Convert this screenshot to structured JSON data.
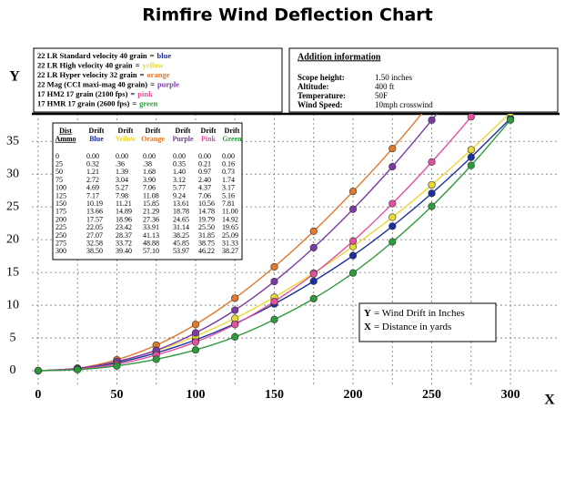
{
  "chart_data": {
    "type": "line",
    "title": "Rimfire Wind Deflection Chart",
    "y_axis_label": "Y",
    "x_axis_label": "X",
    "x": [
      0,
      25,
      50,
      75,
      100,
      125,
      150,
      175,
      200,
      225,
      250,
      275,
      300
    ],
    "xlim": [
      -4,
      330
    ],
    "xticks": [
      0,
      50,
      100,
      150,
      200,
      250,
      300
    ],
    "ylim": [
      -2.5,
      39.2
    ],
    "yticks": [
      0,
      5,
      10,
      15,
      20,
      25,
      30,
      35
    ],
    "grid": true,
    "legend_separator": "=",
    "series": [
      {
        "name": "22 LR Standard velocity 40 grain",
        "color_name": "blue",
        "table_label": "Blue",
        "color": "#1c2f9c",
        "values": [
          0,
          0.32,
          1.21,
          2.72,
          4.69,
          7.17,
          10.19,
          13.66,
          17.57,
          22.05,
          27.07,
          32.58,
          38.5
        ],
        "value_labels": [
          "0.00",
          "0.32",
          "1.21",
          "2.72",
          "4.69",
          "7.17",
          "10.19",
          "13.66",
          "17.57",
          "22.05",
          "27.07",
          "32.58",
          "38.50"
        ]
      },
      {
        "name": "22 LR High velocity 40 grain",
        "color_name": "yellow",
        "table_label": "Yellow",
        "color": "#e8d838",
        "values": [
          0,
          0.36,
          1.39,
          3.04,
          5.27,
          7.98,
          11.21,
          14.89,
          18.96,
          23.42,
          28.37,
          33.72,
          39.4
        ],
        "value_labels": [
          "0.00",
          ".36",
          "1.39",
          "3.04",
          "5.27",
          "7.98",
          "11.21",
          "14.89",
          "18.96",
          "23.42",
          "28.37",
          "33.72",
          "39.40"
        ]
      },
      {
        "name": "22 LR Hyper velocity 32 grain",
        "color_name": "orange",
        "table_label": "Orange",
        "color": "#e2782a",
        "values": [
          0,
          0.38,
          1.68,
          3.9,
          7.06,
          11.08,
          15.85,
          21.29,
          27.36,
          33.91,
          41.13,
          48.88,
          57.1
        ],
        "value_labels": [
          "0.00",
          ".38",
          "1.68",
          "3.90",
          "7.06",
          "11.08",
          "15.85",
          "21.29",
          "27.36",
          "33.91",
          "41.13",
          "48.88",
          "57.10"
        ]
      },
      {
        "name": "22 Mag (CCI maxi-mag 40 grain)",
        "color_name": "purple",
        "table_label": "Purple",
        "color": "#7b3aa6",
        "values": [
          0,
          0.35,
          1.4,
          3.12,
          5.77,
          9.24,
          13.61,
          18.78,
          24.65,
          31.14,
          38.25,
          45.85,
          53.97
        ],
        "value_labels": [
          "0.00",
          "0.35",
          "1.40",
          "3.12",
          "5.77",
          "9.24",
          "13.61",
          "18.78",
          "24.65",
          "31.14",
          "38.25",
          "45.85",
          "53.97"
        ]
      },
      {
        "name": "17 HM2 17 grain (2100 fps)",
        "color_name": "pink",
        "table_label": "Pink",
        "color": "#e2509e",
        "values": [
          0,
          0.21,
          0.97,
          2.4,
          4.37,
          7.06,
          10.56,
          14.78,
          19.79,
          25.5,
          31.85,
          38.75,
          46.22
        ],
        "value_labels": [
          "0.00",
          "0.21",
          "0.97",
          "2.40",
          "4.37",
          "7.06",
          "10.56",
          "14.78",
          "19.79",
          "25.50",
          "31.85",
          "38.75",
          "46.22"
        ]
      },
      {
        "name": "17 HMR 17 grain (2600 fps)",
        "color_name": "green",
        "table_label": "Green",
        "color": "#2e9a3c",
        "values": [
          0,
          0.16,
          0.73,
          1.74,
          3.17,
          5.16,
          7.81,
          11.0,
          14.92,
          19.65,
          25.09,
          31.33,
          38.27
        ],
        "value_labels": [
          "0.00",
          "0.16",
          "0.73",
          "1.74",
          "3.17",
          "5.16",
          "7.81",
          "11.00",
          "14.92",
          "19.65",
          "25.09",
          "31.33",
          "38.27"
        ]
      }
    ],
    "table": {
      "dist_header": "Dist",
      "ammo_header": "Ammo",
      "drift_header": "Drift"
    },
    "info": {
      "title": "Addition information",
      "rows": [
        [
          "Scope height:",
          "1.50 inches"
        ],
        [
          "Altitude:",
          "400 ft"
        ],
        [
          "Temperature:",
          "50F"
        ],
        [
          "Wind Speed:",
          "10mph crosswind"
        ]
      ]
    },
    "annotations": [
      {
        "key": "Y",
        "text": "= Wind Drift in Inches"
      },
      {
        "key": "X",
        "text": "= Distance in yards"
      }
    ]
  }
}
